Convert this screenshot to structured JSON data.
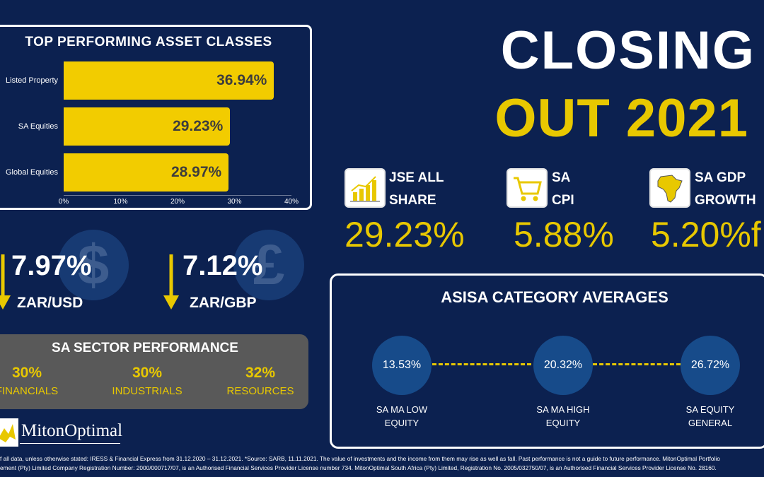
{
  "asset_classes": {
    "title": "TOP PERFORMING ASSET CLASSES",
    "chart_data": {
      "type": "bar",
      "orientation": "horizontal",
      "categories": [
        "Listed Property",
        "SA Equities",
        "Global Equities"
      ],
      "values": [
        36.94,
        29.23,
        28.97
      ],
      "value_labels": [
        "36.94%",
        "29.23%",
        "28.97%"
      ],
      "xlim": [
        0,
        40
      ],
      "ticks": [
        "0%",
        "10%",
        "20%",
        "30%",
        "40%"
      ],
      "bar_color": "#f2cc00",
      "grid": false
    }
  },
  "title": {
    "line1": "CLOSING",
    "line2": "OUT 2021"
  },
  "indicators": [
    {
      "label1": "JSE ALL",
      "label2": "SHARE",
      "value": "29.23%",
      "icon": "bar-chart-growth-icon"
    },
    {
      "label1": "SA",
      "label2": "CPI",
      "value": "5.88%",
      "icon": "shopping-cart-icon"
    },
    {
      "label1": "SA GDP",
      "label2": "GROWTH",
      "value": "5.20%f",
      "icon": "africa-map-icon"
    }
  ],
  "currencies": [
    {
      "value": "7.97%",
      "label": "ZAR/USD",
      "symbol": "$",
      "icon": "arrow-down-icon"
    },
    {
      "value": "7.12%",
      "label": "ZAR/GBP",
      "symbol": "£",
      "icon": "arrow-down-icon"
    }
  ],
  "sector": {
    "title": "SA SECTOR PERFORMANCE",
    "items": [
      {
        "value": "30%",
        "label": "FINANCIALS"
      },
      {
        "value": "30%",
        "label": "INDUSTRIALS"
      },
      {
        "value": "32%",
        "label": "RESOURCES"
      }
    ]
  },
  "asisa": {
    "title": "ASISA CATEGORY AVERAGES",
    "items": [
      {
        "value": "13.53%",
        "label1": "SA MA LOW",
        "label2": "EQUITY"
      },
      {
        "value": "20.32%",
        "label1": "SA MA HIGH",
        "label2": "EQUITY"
      },
      {
        "value": "26.72%",
        "label1": "SA EQUITY",
        "label2": "GENERAL"
      }
    ]
  },
  "logo": {
    "text": "MitonOptimal"
  },
  "footer": {
    "line1": "f all data, unless otherwise stated: IRESS & Financial Express from 31.12.2020 – 31.12.2021. *Source: SARB, 11.11.2021. The value of investments and the income from them may rise as well as fall. Past performance is not a guide to future performance. MitonOptimal Portfolio",
    "line2": "ement (Pty) Limited Company Registration Number: 2000/000717/07, is an Authorised Financial Services Provider License number 734. MitonOptimal South Africa (Pty) Limited, Registration No. 2005/032750/07, is an Authorised Financial Services Provider License No. 28160."
  },
  "colors": {
    "background": "#0c2150",
    "accent": "#e8c800",
    "panel_grey": "#595959",
    "circle": "#174b8a"
  }
}
